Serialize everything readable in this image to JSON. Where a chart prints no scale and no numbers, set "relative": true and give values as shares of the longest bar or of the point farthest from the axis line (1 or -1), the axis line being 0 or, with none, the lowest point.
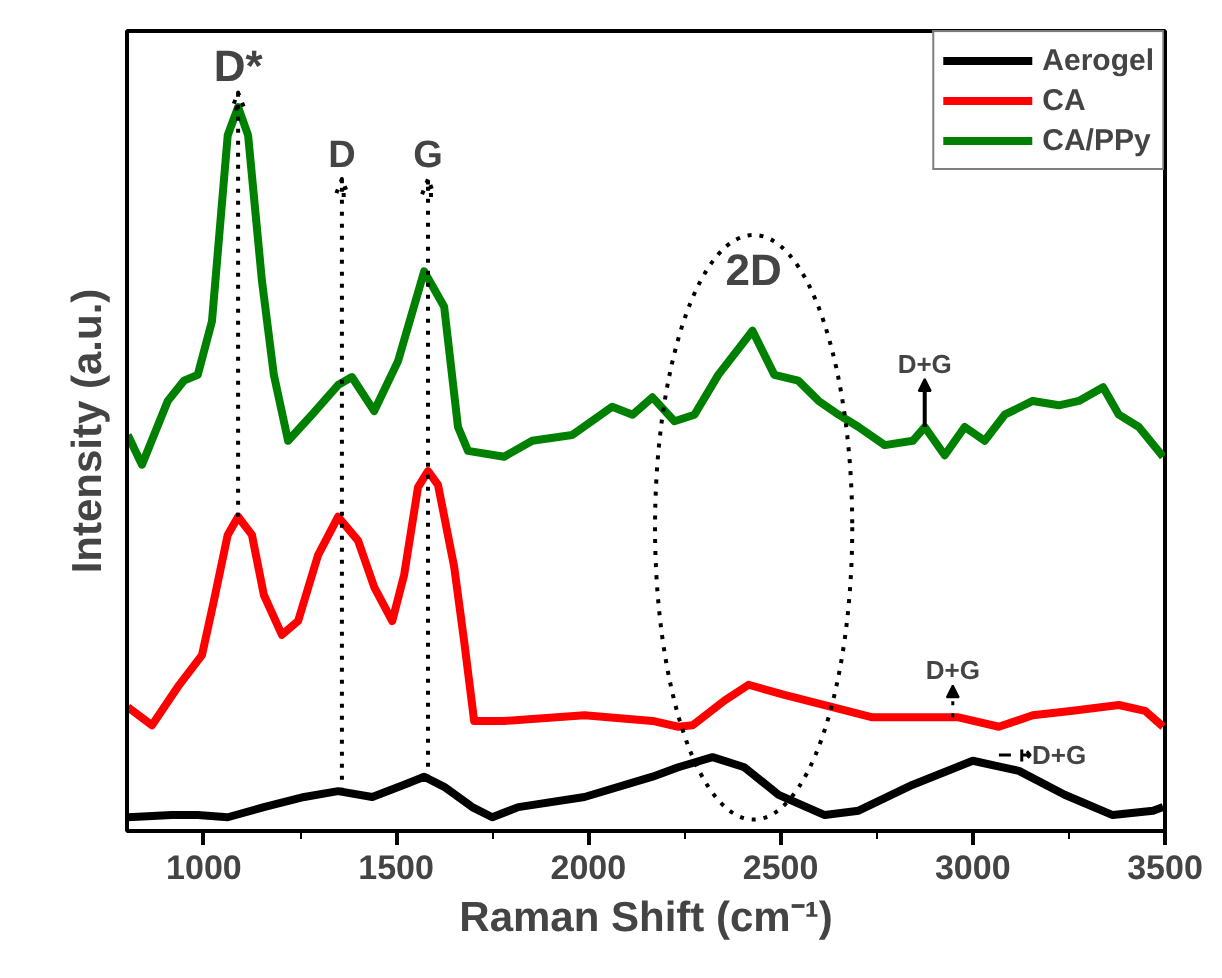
{
  "chart_data": {
    "type": "line",
    "relative": true,
    "xlabel": "Raman Shift (cm⁻¹)",
    "ylabel": "Intensity (a.u.)",
    "xlim": [
      800,
      3500
    ],
    "xticks": [
      1000,
      1500,
      2000,
      2500,
      3000,
      3500
    ],
    "legend": "top right",
    "grid": false,
    "line_style": "solid",
    "marker": "none",
    "tick_labels": "x",
    "series": [
      {
        "name": "Aerogel",
        "color": "#000000",
        "x": [
          802,
          917,
          984,
          1062,
          1156,
          1261,
          1349,
          1438,
          1521,
          1573,
          1625,
          1698,
          1750,
          1818,
          1990,
          2167,
          2234,
          2323,
          2406,
          2495,
          2615,
          2703,
          2844,
          3000,
          3120,
          3239,
          3364,
          3469,
          3495
        ],
        "values": [
          0.019,
          0.022,
          0.022,
          0.019,
          0.033,
          0.047,
          0.055,
          0.047,
          0.064,
          0.075,
          0.061,
          0.033,
          0.019,
          0.033,
          0.047,
          0.075,
          0.088,
          0.102,
          0.088,
          0.05,
          0.022,
          0.028,
          0.064,
          0.097,
          0.083,
          0.05,
          0.022,
          0.028,
          0.033
        ]
      },
      {
        "name": "CA",
        "color": "#ff0000",
        "x": [
          802,
          865,
          932,
          995,
          1026,
          1062,
          1089,
          1125,
          1156,
          1203,
          1245,
          1297,
          1349,
          1401,
          1443,
          1490,
          1521,
          1557,
          1583,
          1609,
          1651,
          1677,
          1703,
          1781,
          1990,
          2167,
          2234,
          2271,
          2354,
          2417,
          2510,
          2635,
          2739,
          2875,
          2963,
          3068,
          3156,
          3260,
          3380,
          3448,
          3495
        ],
        "values": [
          0.171,
          0.146,
          0.199,
          0.243,
          0.318,
          0.409,
          0.434,
          0.409,
          0.326,
          0.271,
          0.29,
          0.381,
          0.434,
          0.401,
          0.337,
          0.29,
          0.354,
          0.475,
          0.497,
          0.478,
          0.365,
          0.262,
          0.152,
          0.152,
          0.16,
          0.152,
          0.144,
          0.146,
          0.18,
          0.202,
          0.188,
          0.171,
          0.157,
          0.157,
          0.157,
          0.144,
          0.16,
          0.166,
          0.174,
          0.166,
          0.144
        ]
      },
      {
        "name": "CA/PPy",
        "color": "#008000",
        "x": [
          802,
          839,
          906,
          948,
          984,
          1021,
          1062,
          1089,
          1115,
          1151,
          1182,
          1219,
          1281,
          1349,
          1385,
          1443,
          1505,
          1573,
          1625,
          1661,
          1687,
          1781,
          1854,
          1958,
          2062,
          2115,
          2167,
          2224,
          2276,
          2338,
          2427,
          2484,
          2546,
          2599,
          2651,
          2703,
          2771,
          2844,
          2875,
          2927,
          2979,
          3031,
          3083,
          3156,
          3224,
          3276,
          3339,
          3380,
          3432,
          3495
        ],
        "values": [
          0.547,
          0.506,
          0.594,
          0.622,
          0.63,
          0.704,
          0.961,
          1.0,
          0.961,
          0.76,
          0.63,
          0.539,
          0.575,
          0.616,
          0.627,
          0.58,
          0.649,
          0.773,
          0.724,
          0.558,
          0.525,
          0.517,
          0.539,
          0.547,
          0.586,
          0.575,
          0.599,
          0.566,
          0.575,
          0.63,
          0.691,
          0.63,
          0.622,
          0.594,
          0.575,
          0.558,
          0.533,
          0.539,
          0.558,
          0.519,
          0.558,
          0.539,
          0.575,
          0.594,
          0.588,
          0.594,
          0.613,
          0.575,
          0.558,
          0.517
        ]
      }
    ],
    "ref_lines": [
      {
        "axis": "x",
        "value": 1089,
        "label": "D*",
        "line_style": "dotted",
        "color": "#000000"
      },
      {
        "axis": "x",
        "value": 1359,
        "label": "D",
        "line_style": "dotted",
        "color": "#000000"
      },
      {
        "axis": "x",
        "value": 1583,
        "label": "G",
        "line_style": "dotted",
        "color": "#000000"
      }
    ],
    "annotations": [
      {
        "text": "2D",
        "x": 2430,
        "y": 0.691
      },
      {
        "text": "D+G",
        "x": 2875,
        "y": 0.558
      },
      {
        "text": "D+G",
        "x": 2948,
        "y": 0.157
      },
      {
        "text": "D+G",
        "x": 3068,
        "y": 0.105
      }
    ]
  }
}
